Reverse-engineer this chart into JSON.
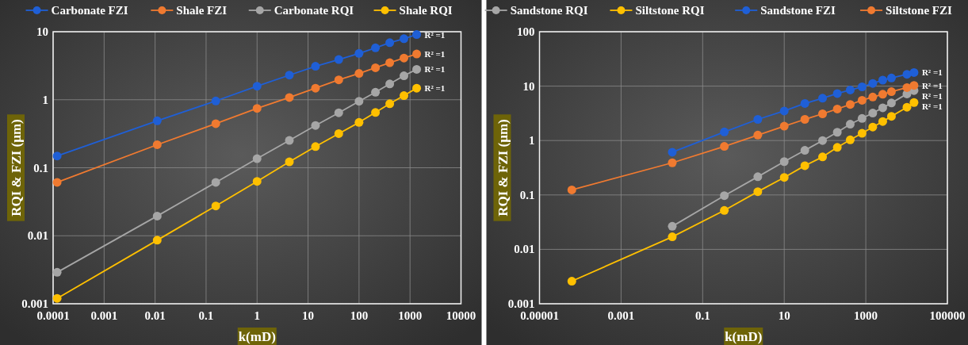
{
  "chart_data": [
    {
      "type": "line",
      "xlabel": "k(mD)",
      "ylabel": "RQI & FZI (μm)",
      "log": "xy",
      "grid": true,
      "legend": "top",
      "marker": "circle",
      "xlim": [
        0.0001,
        10000
      ],
      "xticks": [
        0.0001,
        0.001,
        0.01,
        0.1,
        1,
        10,
        100,
        1000,
        10000
      ],
      "ylim": [
        0.001,
        10
      ],
      "yticks": [
        0.001,
        0.01,
        0.1,
        1,
        10
      ],
      "series": [
        {
          "name": "Carbonate FZI",
          "color": "#1f5fd6",
          "x": [
            0.00012,
            0.011,
            0.155,
            1,
            4.3,
            14,
            40,
            100,
            210,
            400,
            760,
            1350
          ],
          "values": [
            0.149,
            0.49,
            0.96,
            1.58,
            2.3,
            3.1,
            3.9,
            4.8,
            5.8,
            6.9,
            7.9,
            9.1
          ]
        },
        {
          "name": "Shale FZI",
          "color": "#f07a30",
          "x": [
            0.00012,
            0.011,
            0.155,
            1,
            4.3,
            14,
            40,
            100,
            210,
            400,
            760,
            1350
          ],
          "values": [
            0.061,
            0.218,
            0.445,
            0.745,
            1.08,
            1.48,
            1.96,
            2.44,
            2.95,
            3.5,
            4.1,
            4.7
          ]
        },
        {
          "name": "Carbonate RQI",
          "color": "#a6a6a6",
          "x": [
            0.00012,
            0.011,
            0.155,
            1,
            4.3,
            14,
            40,
            100,
            210,
            400,
            760,
            1350
          ],
          "values": [
            0.0029,
            0.0195,
            0.061,
            0.136,
            0.252,
            0.418,
            0.643,
            0.95,
            1.29,
            1.71,
            2.25,
            2.8
          ]
        },
        {
          "name": "Shale RQI",
          "color": "#ffc000",
          "x": [
            0.00012,
            0.011,
            0.155,
            1,
            4.3,
            14,
            40,
            100,
            210,
            400,
            760,
            1350
          ],
          "values": [
            0.0012,
            0.0086,
            0.0274,
            0.063,
            0.122,
            0.205,
            0.318,
            0.464,
            0.65,
            0.873,
            1.15,
            1.48
          ]
        }
      ],
      "annotations": [
        "R² =1",
        "R² =1",
        "R² =1",
        "R² =1"
      ]
    },
    {
      "type": "line",
      "xlabel": "k(mD)",
      "ylabel": "RQI & FZI (μm)",
      "log": "xy",
      "grid": true,
      "legend": "top",
      "marker": "circle",
      "xlim": [
        1e-05,
        100000
      ],
      "xticks": [
        {
          "value": 1e-05,
          "label": "0.00001"
        },
        0.001,
        0.1,
        10,
        1000,
        100000
      ],
      "ylim": [
        0.001,
        100
      ],
      "yticks": [
        0.001,
        0.01,
        0.1,
        1,
        10,
        100
      ],
      "series": [
        {
          "name": "Sandstone RQI",
          "color": "#a6a6a6",
          "x": [
            0.018,
            0.34,
            2.25,
            10,
            32,
            87,
            200,
            415,
            810,
            1480,
            2600,
            4250,
            10200,
            15200
          ],
          "values": [
            0.0265,
            0.097,
            0.216,
            0.41,
            0.66,
            1.0,
            1.42,
            2.0,
            2.55,
            3.2,
            4.0,
            4.9,
            7.2,
            8.3
          ]
        },
        {
          "name": "Siltstone RQI",
          "color": "#ffc000",
          "x": [
            6.2e-05,
            0.018,
            0.34,
            2.25,
            10,
            32,
            87,
            200,
            415,
            810,
            1480,
            2600,
            4250,
            10200,
            15200
          ],
          "values": [
            0.0026,
            0.017,
            0.052,
            0.115,
            0.21,
            0.345,
            0.5,
            0.75,
            1.03,
            1.36,
            1.77,
            2.24,
            2.79,
            4.1,
            5.0
          ]
        },
        {
          "name": "Sandstone FZI",
          "color": "#1f5fd6",
          "x": [
            0.018,
            0.34,
            2.25,
            10,
            32,
            87,
            200,
            415,
            810,
            1480,
            2600,
            4250,
            10200,
            15200
          ],
          "values": [
            0.61,
            1.44,
            2.45,
            3.5,
            4.8,
            6.0,
            7.3,
            8.5,
            9.7,
            11.2,
            12.9,
            14.1,
            16.5,
            17.8
          ]
        },
        {
          "name": "Siltstone FZI",
          "color": "#f07a30",
          "x": [
            6.2e-05,
            0.018,
            0.34,
            2.25,
            10,
            32,
            87,
            200,
            415,
            810,
            1480,
            2600,
            4250,
            10200,
            15200
          ],
          "values": [
            0.124,
            0.39,
            0.78,
            1.26,
            1.84,
            2.45,
            3.1,
            3.8,
            4.6,
            5.5,
            6.3,
            7.1,
            7.9,
            9.4,
            10.3
          ]
        }
      ],
      "annotations": [
        "R² =1",
        "R² =1",
        "R² =1",
        "R² =1"
      ]
    }
  ]
}
